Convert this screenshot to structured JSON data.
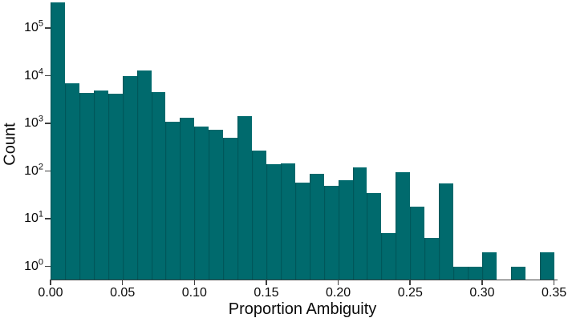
{
  "chart_data": {
    "type": "bar",
    "subtype": "histogram",
    "title": "",
    "xlabel": "Proportion Ambiguity",
    "ylabel": "Count",
    "x_scale": "linear",
    "y_scale": "log",
    "xlim": [
      0.0,
      0.35
    ],
    "ylim": [
      0.5,
      400000
    ],
    "grid": false,
    "legend_position": "none",
    "bin_start": 0.0,
    "bin_width": 0.01,
    "bar_color": "#006a6d",
    "bar_edge_color": "#004c4e",
    "axis_color": "#3f3f3f",
    "text_color": "#0a0a0a",
    "values": [
      350000,
      7000,
      4400,
      4900,
      4200,
      10000,
      13000,
      4500,
      1100,
      1300,
      870,
      740,
      490,
      1400,
      270,
      140,
      145,
      58,
      88,
      49,
      64,
      118,
      35,
      5,
      94,
      18,
      4,
      55,
      1,
      1,
      2,
      0,
      1,
      0,
      2
    ],
    "x_tick_values": [
      0.0,
      0.05,
      0.1,
      0.15,
      0.2,
      0.25,
      0.3,
      0.35
    ],
    "x_tick_labels": [
      "0.00",
      "0.05",
      "0.10",
      "0.15",
      "0.20",
      "0.25",
      "0.30",
      "0.35"
    ],
    "y_tick_base": "10",
    "y_tick_exponents": [
      5,
      4,
      3,
      2,
      1,
      0
    ]
  }
}
